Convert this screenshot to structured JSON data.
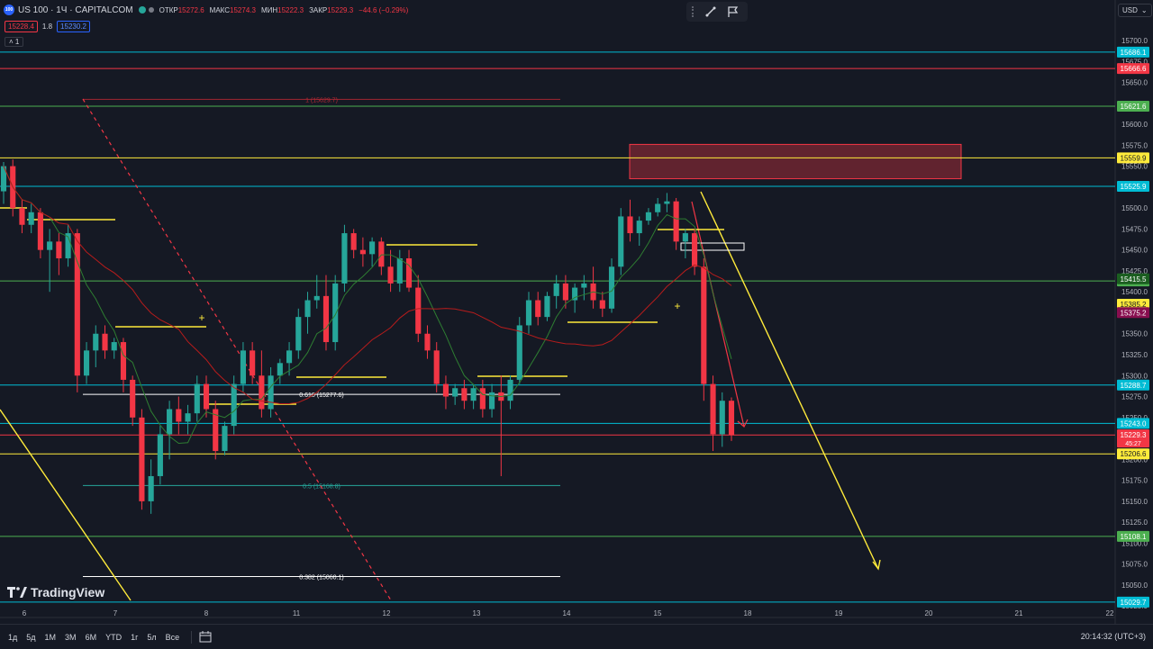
{
  "header": {
    "symbol_title": "US 100 · 1Ч · CAPITALCOM",
    "symbol_logo": "100",
    "ohlc": [
      {
        "k": "ОТКР",
        "v": "15272.6"
      },
      {
        "k": "МАКС",
        "v": "15274.3"
      },
      {
        "k": "МИН",
        "v": "15222.3"
      },
      {
        "k": "ЗАКР",
        "v": "15229.3"
      },
      {
        "k": "",
        "v": "−44.6 (−0.29%)"
      }
    ],
    "sell_price": "15228.4",
    "spread": "1.8",
    "buy_price": "15230.2",
    "indicator_count": "1"
  },
  "currency": "USD",
  "brand": "TradingView",
  "timeframes": [
    "1д",
    "5д",
    "1М",
    "3М",
    "6М",
    "YTD",
    "1г",
    "5л",
    "Все"
  ],
  "clock": "20:14:32 (UTC+3)",
  "chart_data": {
    "type": "candlestick",
    "y_ticks": [
      15700.0,
      15675.0,
      15650.0,
      15625.0,
      15600.0,
      15575.0,
      15550.0,
      15525.0,
      15500.0,
      15475.0,
      15450.0,
      15425.0,
      15400.0,
      15375.0,
      15350.0,
      15325.0,
      15300.0,
      15275.0,
      15250.0,
      15225.0,
      15200.0,
      15175.0,
      15150.0,
      15125.0,
      15100.0,
      15075.0,
      15050.0,
      15025.0
    ],
    "x_labels": [
      "6",
      "7",
      "8",
      "11",
      "12",
      "13",
      "14",
      "15",
      "18",
      "19",
      "20",
      "21",
      "22"
    ],
    "horizontal_levels": [
      {
        "price": 15686.1,
        "label": "15686.1",
        "color": "#00bcd4"
      },
      {
        "price": 15666.6,
        "label": "15666.6",
        "color": "#f23645"
      },
      {
        "price": 15621.6,
        "label": "15621.6",
        "color": "#4caf50"
      },
      {
        "price": 15559.9,
        "label": "15559.9",
        "color": "#ffeb3b"
      },
      {
        "price": 15525.9,
        "label": "15525.9",
        "color": "#00bcd4"
      },
      {
        "price": 15413.0,
        "label": "15413.0",
        "color": "#4caf50"
      },
      {
        "price": 15288.7,
        "label": "15288.7",
        "color": "#00bcd4"
      },
      {
        "price": 15243.0,
        "label": "15243.0",
        "color": "#00bcd4"
      },
      {
        "price": 15229.1,
        "label": "15229.1",
        "color": "#f23645"
      },
      {
        "price": 15206.6,
        "label": "15206.6",
        "color": "#ffeb3b"
      },
      {
        "price": 15108.1,
        "label": "15108.1",
        "color": "#4caf50"
      },
      {
        "price": 15029.7,
        "label": "15029.7",
        "color": "#00bcd4"
      }
    ],
    "price_badges": [
      {
        "price": 15415.5,
        "label": "15415.5",
        "bg": "#1b5e20"
      },
      {
        "price": 15385.2,
        "label": "15385.2",
        "bg": "#ffeb3b"
      },
      {
        "price": 15375.2,
        "label": "15375.2",
        "bg": "#880e4f"
      }
    ],
    "last_price": {
      "price": 15229.3,
      "label": "15229.3",
      "countdown": "45:27"
    },
    "fib_levels": [
      {
        "price": 15629.7,
        "label": "1 (15629.7)"
      },
      {
        "price": 15277.6,
        "label": "0.618 (15277.6)"
      },
      {
        "price": 15168.8,
        "label": "0.5 (15168.8)"
      },
      {
        "price": 15060.1,
        "label": "0.382 (15060.1)"
      }
    ],
    "zone": {
      "price_top": 15576,
      "price_bottom": 15535,
      "color": "#f23645"
    },
    "candles": [
      [
        15520,
        15555,
        15505,
        15550
      ],
      [
        15550,
        15558,
        15490,
        15500
      ],
      [
        15500,
        15510,
        15470,
        15480
      ],
      [
        15480,
        15505,
        15470,
        15495
      ],
      [
        15495,
        15500,
        15440,
        15450
      ],
      [
        15450,
        15475,
        15400,
        15460
      ],
      [
        15460,
        15470,
        15420,
        15440
      ],
      [
        15440,
        15480,
        15430,
        15470
      ],
      [
        15470,
        15475,
        15280,
        15300
      ],
      [
        15300,
        15340,
        15290,
        15330
      ],
      [
        15330,
        15360,
        15310,
        15350
      ],
      [
        15350,
        15360,
        15320,
        15330
      ],
      [
        15330,
        15345,
        15320,
        15340
      ],
      [
        15340,
        15345,
        15280,
        15295
      ],
      [
        15295,
        15300,
        15240,
        15250
      ],
      [
        15250,
        15260,
        15140,
        15150
      ],
      [
        15150,
        15200,
        15135,
        15180
      ],
      [
        15180,
        15240,
        15170,
        15230
      ],
      [
        15230,
        15270,
        15200,
        15260
      ],
      [
        15260,
        15275,
        15230,
        15245
      ],
      [
        15245,
        15265,
        15230,
        15255
      ],
      [
        15255,
        15300,
        15245,
        15290
      ],
      [
        15290,
        15300,
        15250,
        15260
      ],
      [
        15260,
        15270,
        15200,
        15210
      ],
      [
        15210,
        15245,
        15205,
        15240
      ],
      [
        15240,
        15300,
        15230,
        15290
      ],
      [
        15290,
        15340,
        15280,
        15330
      ],
      [
        15330,
        15340,
        15290,
        15300
      ],
      [
        15300,
        15330,
        15250,
        15260
      ],
      [
        15260,
        15310,
        15250,
        15300
      ],
      [
        15300,
        15320,
        15290,
        15315
      ],
      [
        15315,
        15340,
        15300,
        15330
      ],
      [
        15330,
        15380,
        15320,
        15370
      ],
      [
        15370,
        15400,
        15350,
        15390
      ],
      [
        15390,
        15420,
        15380,
        15395
      ],
      [
        15395,
        15420,
        15330,
        15340
      ],
      [
        15340,
        15420,
        15330,
        15410
      ],
      [
        15410,
        15480,
        15400,
        15470
      ],
      [
        15470,
        15475,
        15440,
        15450
      ],
      [
        15450,
        15465,
        15430,
        15445
      ],
      [
        15445,
        15465,
        15430,
        15460
      ],
      [
        15460,
        15465,
        15420,
        15430
      ],
      [
        15430,
        15450,
        15400,
        15410
      ],
      [
        15410,
        15450,
        15400,
        15440
      ],
      [
        15440,
        15450,
        15400,
        15405
      ],
      [
        15405,
        15420,
        15340,
        15350
      ],
      [
        15350,
        15360,
        15320,
        15330
      ],
      [
        15330,
        15340,
        15280,
        15290
      ],
      [
        15290,
        15300,
        15260,
        15275
      ],
      [
        15275,
        15290,
        15265,
        15285
      ],
      [
        15285,
        15295,
        15260,
        15270
      ],
      [
        15270,
        15290,
        15260,
        15285
      ],
      [
        15285,
        15295,
        15250,
        15260
      ],
      [
        15260,
        15290,
        15250,
        15280
      ],
      [
        15280,
        15300,
        15180,
        15270
      ],
      [
        15270,
        15300,
        15260,
        15295
      ],
      [
        15295,
        15370,
        15290,
        15360
      ],
      [
        15360,
        15400,
        15350,
        15390
      ],
      [
        15390,
        15400,
        15360,
        15370
      ],
      [
        15370,
        15400,
        15365,
        15395
      ],
      [
        15395,
        15420,
        15380,
        15410
      ],
      [
        15410,
        15420,
        15380,
        15390
      ],
      [
        15390,
        15410,
        15375,
        15405
      ],
      [
        15405,
        15420,
        15390,
        15410
      ],
      [
        15410,
        15430,
        15380,
        15390
      ],
      [
        15390,
        15400,
        15370,
        15380
      ],
      [
        15380,
        15440,
        15375,
        15430
      ],
      [
        15430,
        15500,
        15420,
        15490
      ],
      [
        15490,
        15510,
        15460,
        15470
      ],
      [
        15470,
        15490,
        15455,
        15485
      ],
      [
        15485,
        15500,
        15480,
        15495
      ],
      [
        15495,
        15512,
        15490,
        15505
      ],
      [
        15505,
        15518,
        15495,
        15508
      ],
      [
        15508,
        15512,
        15450,
        15460
      ],
      [
        15460,
        15475,
        15440,
        15470
      ],
      [
        15470,
        15475,
        15420,
        15430
      ],
      [
        15430,
        15440,
        15270,
        15290
      ],
      [
        15290,
        15300,
        15210,
        15230
      ],
      [
        15230,
        15280,
        15215,
        15270
      ],
      [
        15270,
        15274,
        15222,
        15229
      ]
    ]
  }
}
